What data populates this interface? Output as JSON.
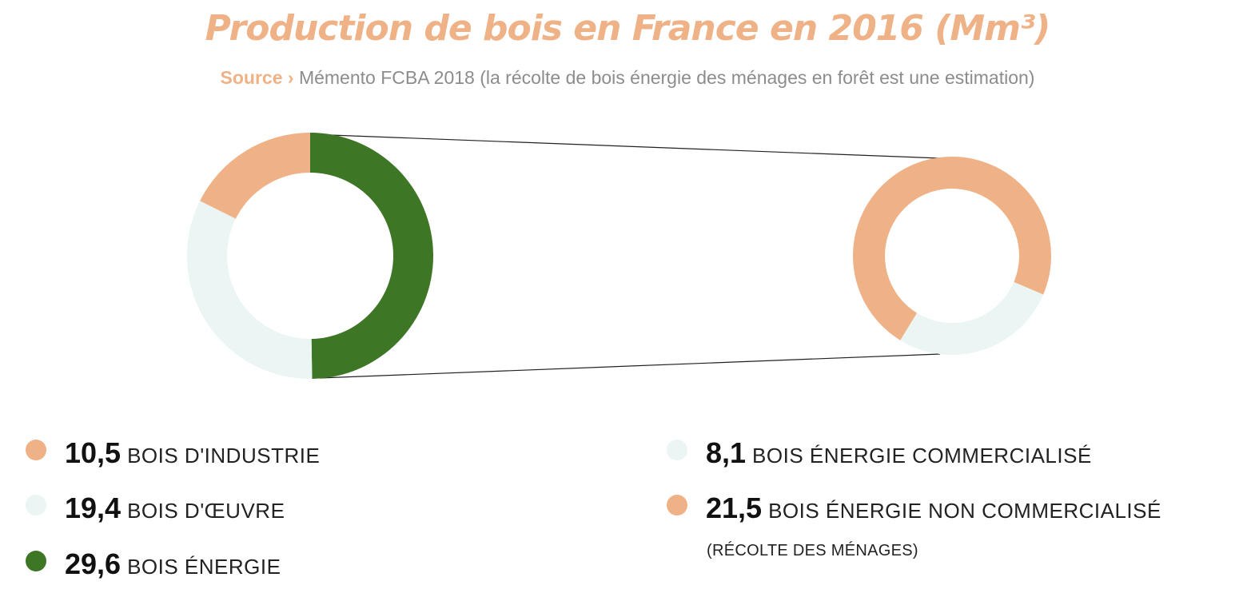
{
  "header": {
    "title": "Production de bois en France en 2016 (Mm³)",
    "source_label": "Source ›",
    "source_text": "Mémento FCBA 2018 (la récolte de bois énergie des ménages en forêt est une estimation)"
  },
  "colors": {
    "title": "#EFB287",
    "industrie": "#EFB287",
    "oeuvre": "#EAF5F4",
    "energie": "#3D7625",
    "connector": "#222222"
  },
  "chart_data": [
    {
      "type": "pie",
      "variant": "donut",
      "title": "",
      "slices": [
        {
          "label": "BOIS D'INDUSTRIE",
          "value": 10.5,
          "value_label": "10,5",
          "color": "#EFB287"
        },
        {
          "label": "BOIS D'ŒUVRE",
          "value": 19.4,
          "value_label": "19,4",
          "color": "#EAF5F4"
        },
        {
          "label": "BOIS ÉNERGIE",
          "value": 29.6,
          "value_label": "29,6",
          "color": "#3D7625"
        }
      ]
    },
    {
      "type": "pie",
      "variant": "donut",
      "title": "",
      "breakdown_of": "BOIS ÉNERGIE",
      "slices": [
        {
          "label": "BOIS ÉNERGIE COMMERCIALISÉ",
          "value": 8.1,
          "value_label": "8,1",
          "color": "#EAF5F4"
        },
        {
          "label": "BOIS ÉNERGIE NON COMMERCIALISÉ",
          "value": 21.5,
          "value_label": "21,5",
          "color": "#EFB287"
        }
      ]
    }
  ],
  "legend": {
    "left": [
      {
        "value": "10,5",
        "label": "BOIS D'INDUSTRIE",
        "color": "#EFB287"
      },
      {
        "value": "19,4",
        "label": "BOIS D'ŒUVRE",
        "color": "#EAF5F4"
      },
      {
        "value": "29,6",
        "label": "BOIS ÉNERGIE",
        "color": "#3D7625"
      }
    ],
    "right": [
      {
        "value": "8,1",
        "label": "BOIS ÉNERGIE COMMERCIALISÉ",
        "color": "#EAF5F4"
      },
      {
        "value": "21,5",
        "label": "BOIS ÉNERGIE NON COMMERCIALISÉ",
        "color": "#EFB287"
      }
    ],
    "note": "(RÉCOLTE DES MÉNAGES)"
  }
}
